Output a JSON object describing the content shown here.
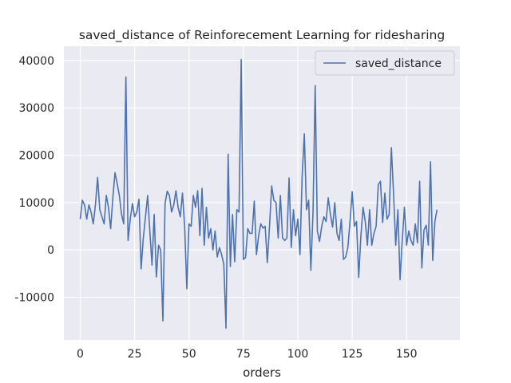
{
  "chart_data": {
    "type": "line",
    "title": "saved_distance of Reinforecement Learning for ridesharing",
    "xlabel": "orders",
    "ylabel": "",
    "xlim": [
      -7.5,
      174.5
    ],
    "ylim": [
      -19000,
      43000
    ],
    "xticks": [
      0,
      25,
      50,
      75,
      100,
      125,
      150
    ],
    "yticks": [
      -10000,
      0,
      10000,
      20000,
      30000,
      40000
    ],
    "grid": true,
    "legend": "top-right",
    "series": [
      {
        "name": "saved_distance",
        "color": "#4c72b0",
        "values": [
          6500,
          10500,
          9500,
          6500,
          9500,
          8000,
          5500,
          9500,
          15300,
          8500,
          7000,
          5500,
          11500,
          9000,
          4500,
          11000,
          16300,
          14000,
          11500,
          7500,
          5500,
          36500,
          2000,
          6500,
          9800,
          7000,
          8000,
          10700,
          -4000,
          2500,
          7000,
          11500,
          4000,
          -3200,
          7500,
          -5700,
          1000,
          0,
          -15000,
          9800,
          12400,
          11500,
          8000,
          9500,
          12500,
          9000,
          7000,
          12000,
          5000,
          -8200,
          5500,
          5000,
          11500,
          9000,
          12500,
          3000,
          13000,
          1000,
          9000,
          2500,
          4500,
          0,
          4000,
          -1500,
          500,
          -1000,
          -3000,
          -16500,
          20200,
          -3500,
          7500,
          -2500,
          8500,
          8000,
          40200,
          -2000,
          -1600,
          4500,
          3500,
          3500,
          10300,
          -1000,
          3000,
          5500,
          4600,
          5000,
          -2700,
          5000,
          13500,
          10500,
          10000,
          2500,
          11500,
          2500,
          2000,
          2500,
          15200,
          500,
          8500,
          3000,
          6500,
          -1000,
          15500,
          24500,
          8500,
          10500,
          -4300,
          8000,
          34700,
          4000,
          1800,
          5000,
          7000,
          6000,
          11000,
          7500,
          4800,
          10000,
          3500,
          2000,
          6500,
          -2000,
          -1500,
          500,
          6000,
          12300,
          5000,
          6000,
          -5800,
          3000,
          9000,
          6000,
          1000,
          8500,
          1000,
          3500,
          5000,
          13800,
          14500,
          5800,
          12000,
          6500,
          7500,
          21600,
          12000,
          1000,
          8500,
          -6300,
          2000,
          9000,
          1000,
          4000,
          2000,
          1000,
          5500,
          1500,
          14500,
          -3800,
          4200,
          5200,
          1000,
          18600,
          -2200,
          6000,
          8500
        ]
      }
    ]
  }
}
